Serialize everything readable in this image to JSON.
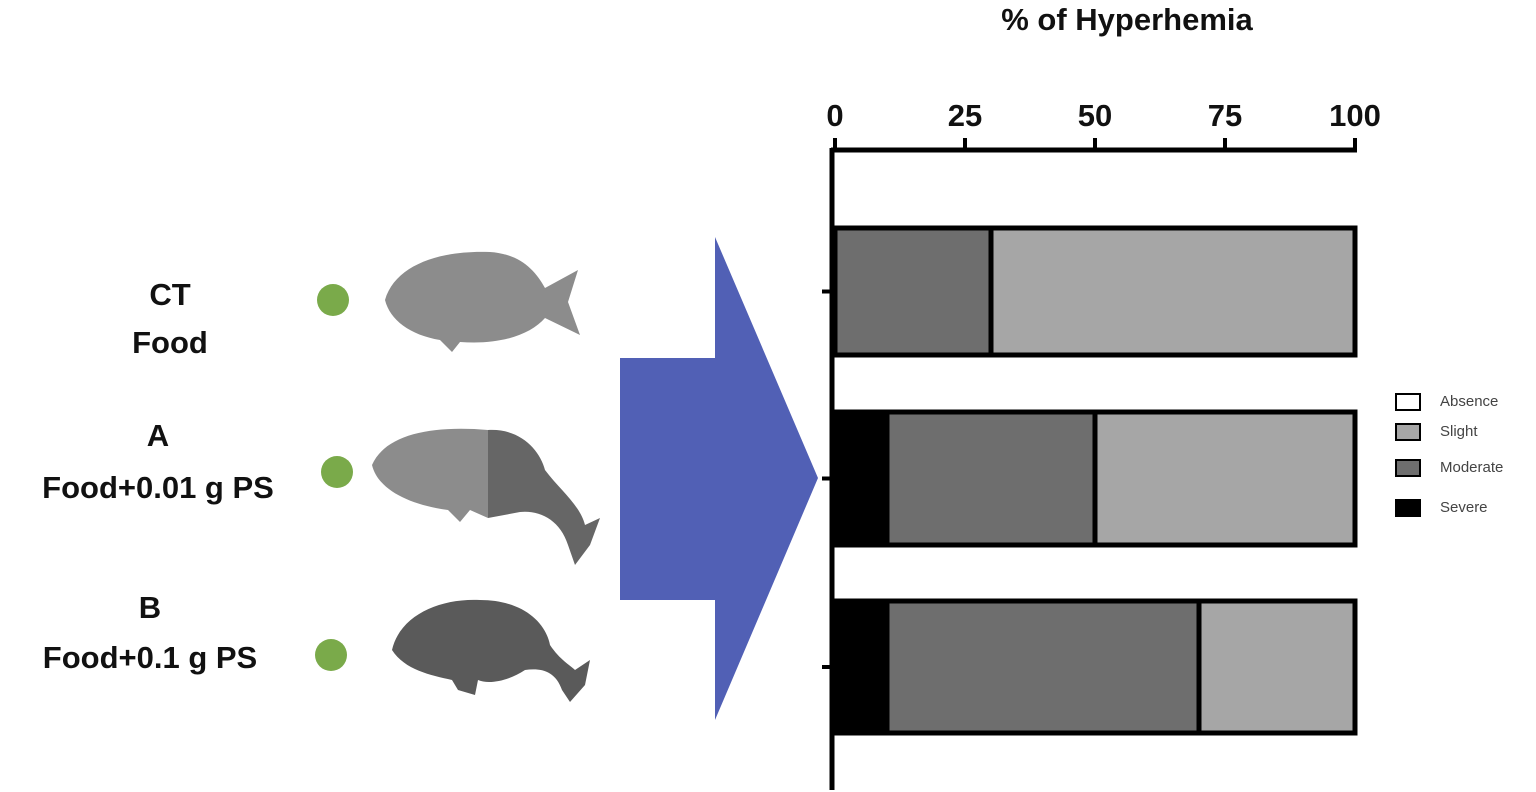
{
  "chart_data": {
    "type": "stacked-barh",
    "title": "% of Hyperhemia",
    "categories": [
      [
        "CT",
        "Food"
      ],
      [
        "A",
        "Food+0.01 g PS"
      ],
      [
        "B",
        "Food+0.1 g PS"
      ]
    ],
    "series": [
      {
        "name": "Absence",
        "color": "#ffffff",
        "values": [
          0,
          0,
          0
        ]
      },
      {
        "name": "Slight",
        "color": "#a6a6a6",
        "values": [
          70,
          50,
          30
        ]
      },
      {
        "name": "Moderate",
        "color": "#6e6e6e",
        "values": [
          30,
          40,
          60
        ]
      },
      {
        "name": "Severe",
        "color": "#000000",
        "values": [
          0,
          10,
          10
        ]
      }
    ],
    "xlim": [
      0,
      100
    ],
    "xticks": [
      0,
      25,
      50,
      75,
      100
    ],
    "legend": "right"
  }
}
